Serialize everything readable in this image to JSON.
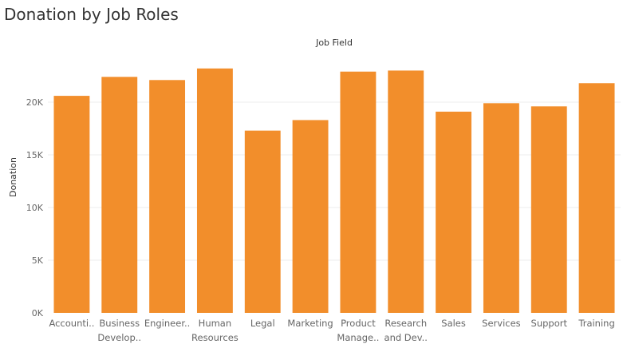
{
  "page": {
    "title": "Donation by Job Roles"
  },
  "chart_data": {
    "type": "bar",
    "title": "Donation by Job Roles",
    "xlabel": "Job Field",
    "ylabel": "Donation",
    "categories": [
      [
        "Accounti.."
      ],
      [
        "Business",
        "Develop.."
      ],
      [
        "Engineer.."
      ],
      [
        "Human",
        "Resources"
      ],
      [
        "Legal"
      ],
      [
        "Marketing"
      ],
      [
        "Product",
        "Manage.."
      ],
      [
        "Research",
        "and Dev.."
      ],
      [
        "Sales"
      ],
      [
        "Services"
      ],
      [
        "Support"
      ],
      [
        "Training"
      ]
    ],
    "values": [
      20600,
      22400,
      22100,
      23200,
      17300,
      18300,
      22900,
      23000,
      19100,
      19900,
      19600,
      21800
    ],
    "ylim": [
      0,
      25000
    ],
    "yticks": [
      0,
      5000,
      10000,
      15000,
      20000
    ],
    "ytick_labels": [
      "0K",
      "5K",
      "10K",
      "15K",
      "20K"
    ],
    "grid": true,
    "bar_color": "#F28E2B",
    "x_label_position": "top"
  }
}
